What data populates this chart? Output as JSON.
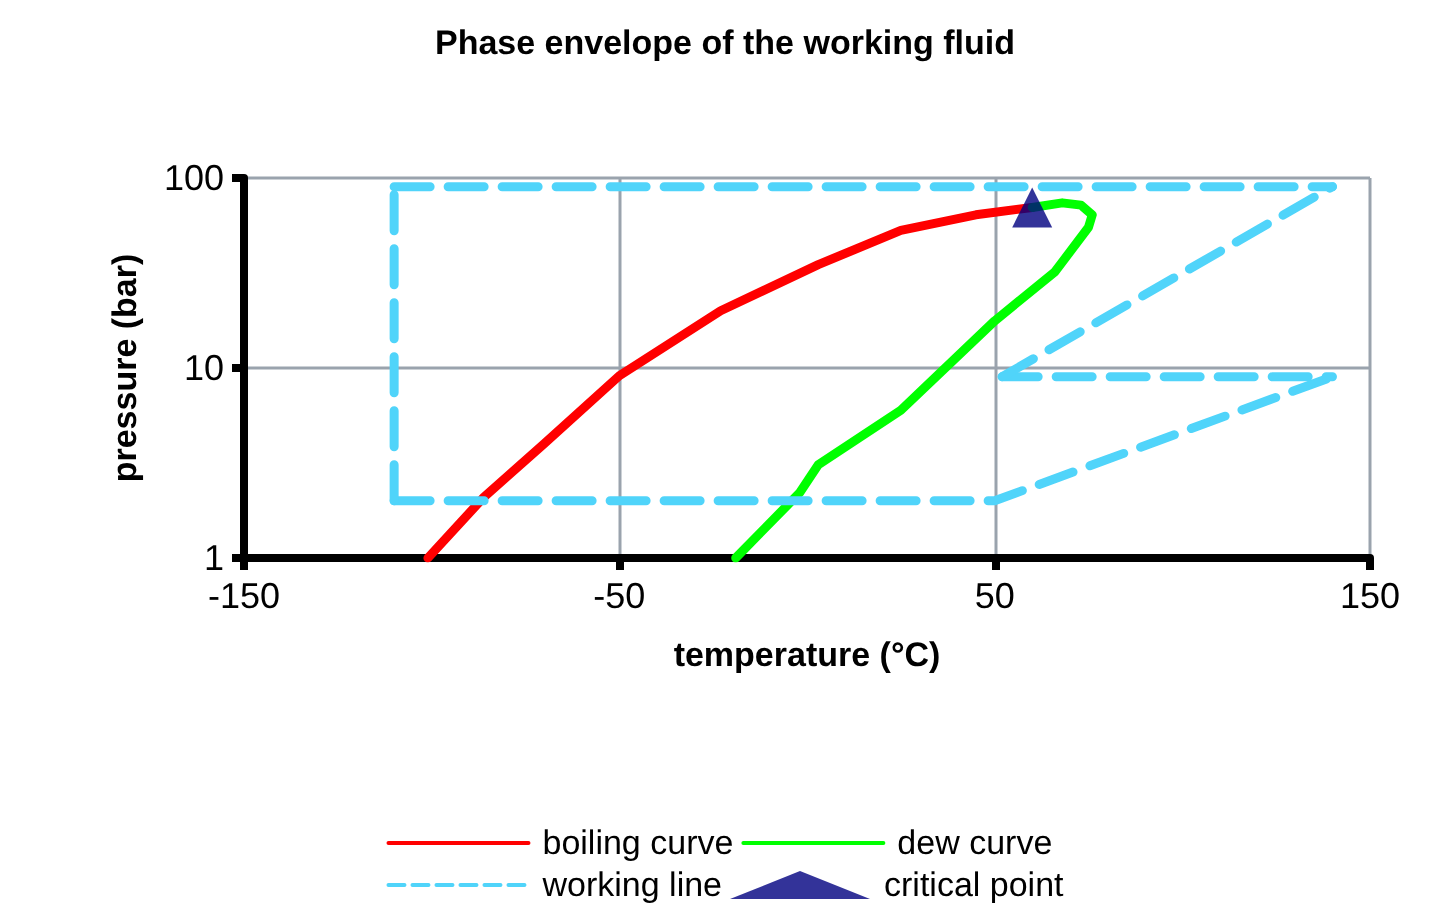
{
  "chart_data": {
    "type": "line",
    "title": "Phase envelope of the working fluid",
    "xlabel": "temperature (°C)",
    "ylabel": "pressure (bar)",
    "xlim": [
      -150,
      150
    ],
    "xticks": [
      -150,
      -50,
      50,
      150
    ],
    "ylim": [
      1,
      100
    ],
    "yticks": [
      1,
      10,
      100
    ],
    "log": "y",
    "grid": true,
    "legend": "bottom",
    "series": [
      {
        "name": "boiling curve",
        "color": "#ff0000",
        "marker": "none",
        "line_style": "solid",
        "x": [
          -101,
          -86,
          -70,
          -50,
          -23,
          3,
          25,
          45,
          60
        ],
        "values": [
          1,
          2.1,
          4,
          9.1,
          20,
          35,
          53,
          64,
          70
        ]
      },
      {
        "name": "dew curve",
        "color": "#00ff00",
        "marker": "none",
        "line_style": "solid",
        "x": [
          -19,
          -2,
          3,
          25,
          50,
          66,
          75,
          76,
          73,
          68,
          60
        ],
        "values": [
          1,
          2.2,
          3.1,
          6,
          17.7,
          32,
          55,
          64,
          72,
          74,
          70
        ]
      },
      {
        "name": "working line",
        "color": "#50d4fa",
        "marker": "none",
        "line_style": "dashed",
        "x": [
          -110,
          50,
          140
        ],
        "values": [
          2,
          2,
          9
        ]
      },
      {
        "color": "#50d4fa",
        "marker": "none",
        "line_style": "dashed",
        "x": [
          52,
          140
        ],
        "values": [
          9,
          9
        ]
      },
      {
        "color": "#50d4fa",
        "marker": "none",
        "line_style": "dashed",
        "x": [
          52,
          140
        ],
        "values": [
          9,
          90
        ]
      },
      {
        "color": "#50d4fa",
        "marker": "none",
        "line_style": "dashed",
        "x": [
          -110,
          140
        ],
        "values": [
          90,
          90
        ]
      },
      {
        "color": "#50d4fa",
        "marker": "none",
        "line_style": "dashed",
        "x": [
          -110,
          -110
        ],
        "values": [
          2,
          90
        ]
      },
      {
        "name": "critical point",
        "type": "scatter",
        "color": "#000080",
        "marker": "triangle",
        "x": [
          60
        ],
        "values": [
          70
        ]
      }
    ]
  }
}
